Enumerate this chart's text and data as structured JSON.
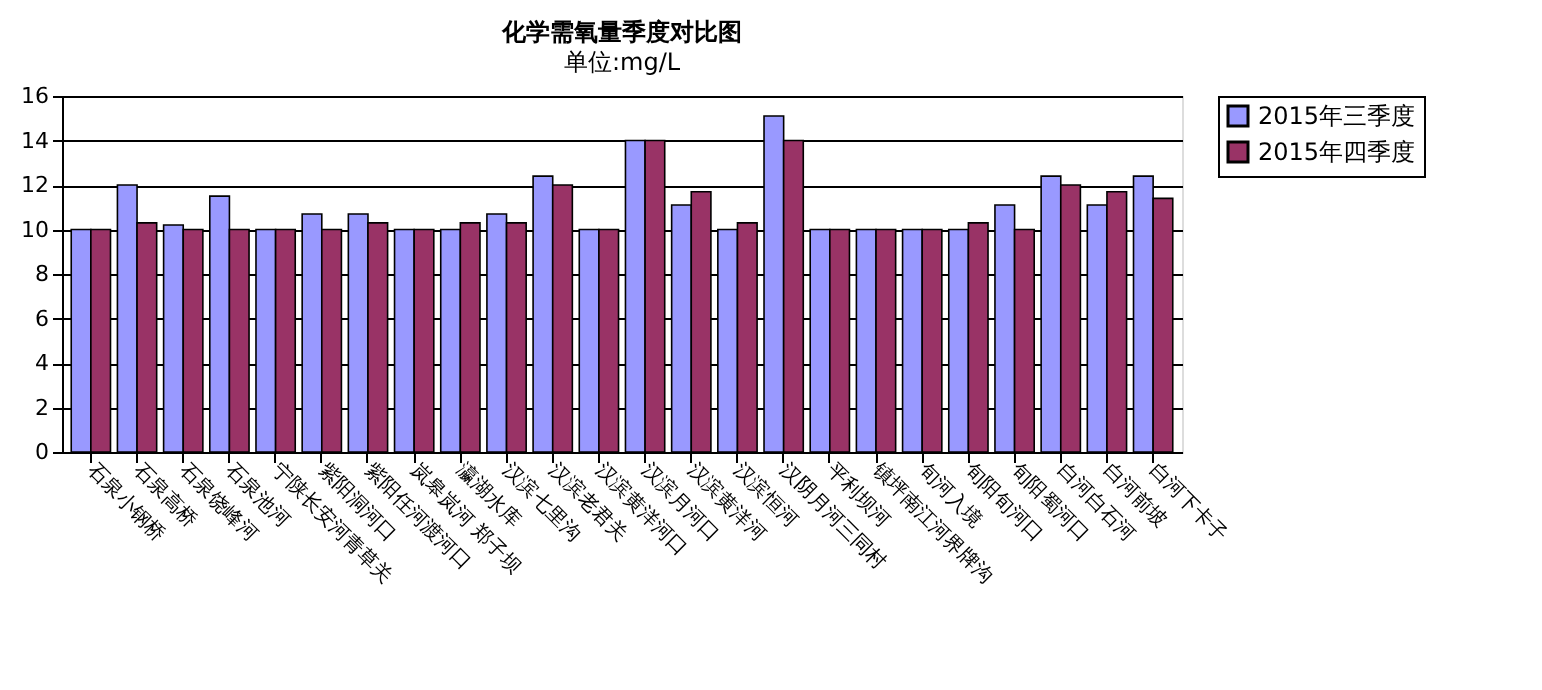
{
  "chart_data": {
    "type": "bar",
    "title": "化学需氧量季度对比图",
    "annotations": [
      "单位:mg/L"
    ],
    "categories": [
      "石泉小钢桥",
      "石泉高桥",
      "石泉饶峰河",
      "石泉池河",
      "宁陕长安河青草关",
      "紫阳洞河口",
      "紫阳任河渡河口",
      "岚皋岚河 郑子坝",
      "瀛湖水库",
      "汉滨七里沟",
      "汉滨老君关",
      "汉滨黄洋河口",
      "汉滨月河口",
      "汉滨黄洋河",
      "汉滨恒河",
      "汉阴月河三同村",
      "平利坝河",
      "镇坪南江河界牌沟",
      "旬河入境",
      "旬阳旬河口",
      "旬阳蜀河口",
      "白河白石河",
      "白河前坡",
      "白河下卡子"
    ],
    "series": [
      {
        "name": "2015年三季度",
        "color": "#9999ff",
        "values": [
          10,
          12,
          10.2,
          11.5,
          10,
          10.7,
          10.7,
          10,
          10,
          10.7,
          12.4,
          10,
          14,
          11.1,
          10,
          15.1,
          10,
          10,
          10,
          10,
          11.1,
          12.4,
          11.1,
          12.4
        ]
      },
      {
        "name": "2015年四季度",
        "color": "#993366",
        "values": [
          10,
          10.3,
          10,
          10,
          10,
          10,
          10.3,
          10,
          10.3,
          10.3,
          12,
          10,
          14,
          11.7,
          10.3,
          14,
          10,
          10,
          10,
          10.3,
          10,
          12,
          11.7,
          11.4
        ]
      }
    ],
    "ylim": [
      0,
      16
    ],
    "yticks": [
      0,
      2,
      4,
      6,
      8,
      10,
      12,
      14,
      16
    ],
    "grid": "y",
    "legend": "right"
  }
}
